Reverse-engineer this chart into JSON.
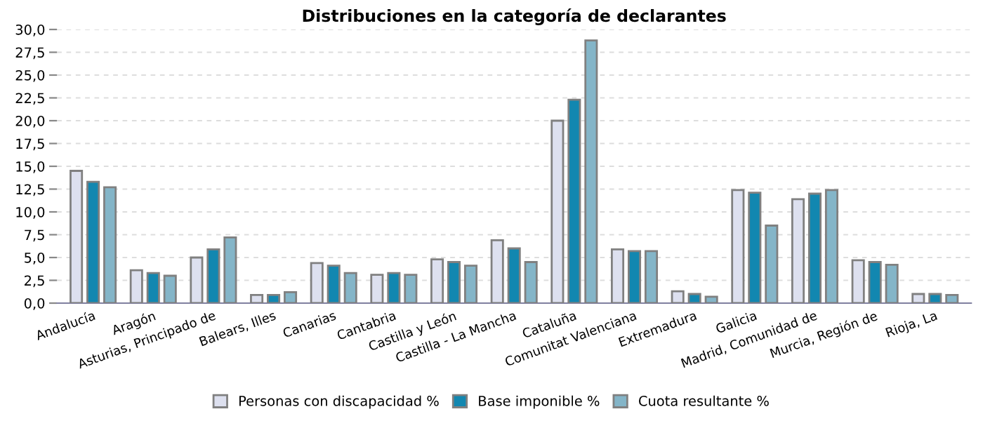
{
  "chart_data": {
    "type": "bar",
    "title": "Distribuciones en la categoría de declarantes",
    "categories": [
      "Andalucía",
      "Aragón",
      "Asturias, Principado de",
      "Balears, Illes",
      "Canarias",
      "Cantabria",
      "Castilla y León",
      "Castilla - La Mancha",
      "Cataluña",
      "Comunitat Valenciana",
      "Extremadura",
      "Galicia",
      "Madrid, Comunidad de",
      "Murcia, Región de",
      "Rioja, La"
    ],
    "series": [
      {
        "name": "Personas con discapacidad %",
        "color": "#dde0ef",
        "values": [
          14.5,
          3.6,
          5.0,
          0.9,
          4.4,
          3.1,
          4.8,
          6.9,
          20.0,
          5.9,
          1.3,
          12.4,
          11.4,
          4.7,
          1.0
        ]
      },
      {
        "name": "Base imponible %",
        "color": "#1287b0",
        "values": [
          13.3,
          3.3,
          5.9,
          0.9,
          4.1,
          3.3,
          4.5,
          6.0,
          22.3,
          5.7,
          1.0,
          12.1,
          12.0,
          4.5,
          1.0
        ]
      },
      {
        "name": "Cuota resultante %",
        "color": "#84b5c8",
        "values": [
          12.7,
          3.0,
          7.2,
          1.2,
          3.3,
          3.1,
          4.1,
          4.5,
          28.8,
          5.7,
          0.7,
          8.5,
          12.4,
          4.2,
          0.9
        ]
      }
    ],
    "ylim": [
      0,
      30
    ],
    "yticks": [
      {
        "value": 0,
        "label": "0,0"
      },
      {
        "value": 2.5,
        "label": "2,5"
      },
      {
        "value": 5,
        "label": "5,0"
      },
      {
        "value": 7.5,
        "label": "7,5"
      },
      {
        "value": 10,
        "label": "10,0"
      },
      {
        "value": 12.5,
        "label": "12,5"
      },
      {
        "value": 15,
        "label": "15,0"
      },
      {
        "value": 17.5,
        "label": "17,5"
      },
      {
        "value": 20,
        "label": "20,0"
      },
      {
        "value": 22.5,
        "label": "22,5"
      },
      {
        "value": 25,
        "label": "25,0"
      },
      {
        "value": 27.5,
        "label": "27,5"
      },
      {
        "value": 30,
        "label": "30,0"
      }
    ],
    "grid": "y",
    "legend": "bottom"
  }
}
